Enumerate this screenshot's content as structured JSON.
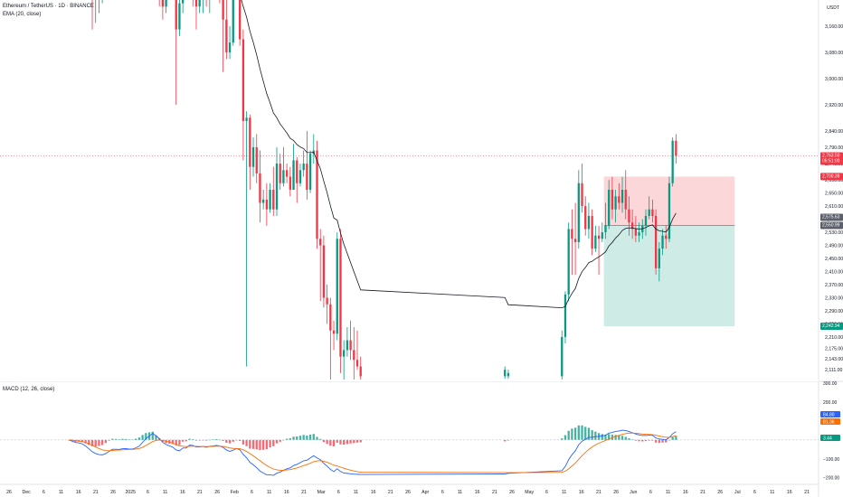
{
  "header": {
    "symbol_line": "Ethereum / TetherUS · 1D · BINANCE",
    "ema_label": "EMA (20, close)",
    "macd_label": "MACD (12, 26, close)",
    "currency": "USDT"
  },
  "price_axis": {
    "ticks": [
      "3,160.00",
      "3,080.00",
      "3,000.00",
      "2,920.00",
      "2,840.00",
      "2,790.00",
      "2,740.00",
      "2,690.00",
      "2,650.00",
      "2,610.00",
      "2,570.00",
      "2,530.00",
      "2,490.00",
      "2,450.00",
      "2,410.00",
      "2,370.00",
      "2,330.00",
      "2,290.00",
      "2,250.00",
      "2,210.00",
      "2,175.00",
      "2,143.00",
      "2,111.00"
    ],
    "badges": [
      {
        "name": "last-price-badge",
        "lines": [
          "2,763.50",
          "06:51:00"
        ],
        "color": "#f23645"
      },
      {
        "name": "position-top-badge",
        "lines": [
          "2,700.39"
        ],
        "color": "#f23645"
      },
      {
        "name": "ema-badge",
        "lines": [
          "2,575.63"
        ],
        "color": "#5d606b"
      },
      {
        "name": "entry-badge",
        "lines": [
          "2,550.99"
        ],
        "color": "#5d606b"
      },
      {
        "name": "target-badge",
        "lines": [
          "2,242.94"
        ],
        "color": "#089981"
      }
    ]
  },
  "macd_axis": {
    "ticks": [
      "300.00",
      "200.00",
      "100.00",
      "−100.00",
      "−200.00"
    ],
    "badges": [
      {
        "name": "macd-line-badge",
        "text": "84.80",
        "color": "#2962ff"
      },
      {
        "name": "signal-line-badge",
        "text": "81.36",
        "color": "#ff6d00"
      },
      {
        "name": "histogram-badge",
        "text": "3.44",
        "color": "#089981"
      }
    ]
  },
  "time_axis": {
    "labels": [
      "26",
      "Dec",
      "6",
      "11",
      "16",
      "21",
      "26",
      "2025",
      "6",
      "11",
      "16",
      "21",
      "26",
      "Feb",
      "6",
      "11",
      "16",
      "21",
      "Mar",
      "6",
      "11",
      "16",
      "21",
      "26",
      "Apr",
      "6",
      "11",
      "16",
      "21",
      "26",
      "May",
      "6",
      "11",
      "16",
      "21",
      "26",
      "Jun",
      "6",
      "11",
      "16",
      "21",
      "26",
      "Jul",
      "6",
      "11",
      "16",
      "21"
    ]
  },
  "chart_data": {
    "type": "candlestick",
    "title": "Ethereum / TetherUS · 1D · BINANCE",
    "x_range": [
      "2024-11-22",
      "2025-07-24"
    ],
    "y_range_visible": [
      2080,
      3240
    ],
    "position_tool": {
      "entry": 2550.99,
      "stop": 2700.39,
      "target": 2242.94,
      "side": "short"
    },
    "last_price": 2763.5,
    "ema_last": 2575.63,
    "candles": [
      {
        "date": "2024-12-12",
        "o": 3600,
        "h": 3700,
        "l": 3400,
        "c": 3580
      },
      {
        "date": "2024-12-13",
        "o": 3580,
        "h": 3650,
        "l": 3450,
        "c": 3500
      },
      {
        "date": "2024-12-14",
        "o": 3500,
        "h": 3560,
        "l": 3430,
        "c": 3470
      },
      {
        "date": "2024-12-15",
        "o": 3470,
        "h": 3550,
        "l": 3440,
        "c": 3520
      },
      {
        "date": "2024-12-16",
        "o": 3520,
        "h": 3600,
        "l": 3430,
        "c": 3460
      },
      {
        "date": "2024-12-17",
        "o": 3460,
        "h": 3520,
        "l": 3350,
        "c": 3380
      },
      {
        "date": "2024-12-18",
        "o": 3380,
        "h": 3420,
        "l": 3250,
        "c": 3290
      },
      {
        "date": "2024-12-19",
        "o": 3290,
        "h": 3360,
        "l": 3150,
        "c": 3240
      },
      {
        "date": "2024-12-20",
        "o": 3240,
        "h": 3290,
        "l": 3170,
        "c": 3260
      },
      {
        "date": "2024-12-21",
        "o": 3260,
        "h": 3320,
        "l": 3200,
        "c": 3280
      },
      {
        "date": "2024-12-22",
        "o": 3280,
        "h": 3350,
        "l": 3230,
        "c": 3300
      },
      {
        "date": "2024-12-23",
        "o": 3300,
        "h": 3420,
        "l": 3280,
        "c": 3390
      },
      {
        "date": "2024-12-24",
        "o": 3390,
        "h": 3480,
        "l": 3360,
        "c": 3450
      },
      {
        "date": "2024-12-25",
        "o": 3450,
        "h": 3520,
        "l": 3420,
        "c": 3480
      },
      {
        "date": "2024-12-26",
        "o": 3480,
        "h": 3500,
        "l": 3330,
        "c": 3360
      },
      {
        "date": "2024-12-27",
        "o": 3360,
        "h": 3400,
        "l": 3310,
        "c": 3340
      },
      {
        "date": "2024-12-28",
        "o": 3340,
        "h": 3410,
        "l": 3320,
        "c": 3390
      },
      {
        "date": "2024-12-29",
        "o": 3390,
        "h": 3420,
        "l": 3330,
        "c": 3350
      },
      {
        "date": "2024-12-30",
        "o": 3350,
        "h": 3420,
        "l": 3290,
        "c": 3310
      },
      {
        "date": "2024-12-31",
        "o": 3310,
        "h": 3380,
        "l": 3290,
        "c": 3330
      },
      {
        "date": "2025-01-01",
        "o": 3330,
        "h": 3420,
        "l": 3310,
        "c": 3400
      },
      {
        "date": "2025-01-02",
        "o": 3400,
        "h": 3500,
        "l": 3380,
        "c": 3450
      },
      {
        "date": "2025-01-03",
        "o": 3450,
        "h": 3620,
        "l": 3430,
        "c": 3600
      },
      {
        "date": "2025-01-04",
        "o": 3600,
        "h": 3680,
        "l": 3570,
        "c": 3650
      },
      {
        "date": "2025-01-05",
        "o": 3650,
        "h": 3720,
        "l": 3600,
        "c": 3630
      },
      {
        "date": "2025-01-06",
        "o": 3630,
        "h": 3700,
        "l": 3580,
        "c": 3680
      },
      {
        "date": "2025-01-07",
        "o": 3680,
        "h": 3700,
        "l": 3350,
        "c": 3380
      },
      {
        "date": "2025-01-08",
        "o": 3380,
        "h": 3420,
        "l": 3220,
        "c": 3330
      },
      {
        "date": "2025-01-09",
        "o": 3330,
        "h": 3360,
        "l": 3180,
        "c": 3220
      },
      {
        "date": "2025-01-10",
        "o": 3220,
        "h": 3330,
        "l": 3200,
        "c": 3270
      },
      {
        "date": "2025-01-11",
        "o": 3270,
        "h": 3320,
        "l": 3240,
        "c": 3290
      },
      {
        "date": "2025-01-12",
        "o": 3290,
        "h": 3340,
        "l": 3250,
        "c": 3270
      },
      {
        "date": "2025-01-13",
        "o": 3270,
        "h": 3350,
        "l": 2920,
        "c": 3150
      },
      {
        "date": "2025-01-14",
        "o": 3150,
        "h": 3250,
        "l": 3130,
        "c": 3230
      },
      {
        "date": "2025-01-15",
        "o": 3230,
        "h": 3470,
        "l": 3200,
        "c": 3450
      },
      {
        "date": "2025-01-16",
        "o": 3450,
        "h": 3470,
        "l": 3250,
        "c": 3300
      },
      {
        "date": "2025-01-17",
        "o": 3300,
        "h": 3520,
        "l": 3290,
        "c": 3480
      },
      {
        "date": "2025-01-18",
        "o": 3480,
        "h": 3500,
        "l": 3220,
        "c": 3310
      },
      {
        "date": "2025-01-19",
        "o": 3310,
        "h": 3450,
        "l": 3150,
        "c": 3220
      },
      {
        "date": "2025-01-20",
        "o": 3220,
        "h": 3460,
        "l": 3200,
        "c": 3300
      },
      {
        "date": "2025-01-21",
        "o": 3300,
        "h": 3350,
        "l": 3200,
        "c": 3320
      },
      {
        "date": "2025-01-22",
        "o": 3320,
        "h": 3350,
        "l": 3220,
        "c": 3240
      },
      {
        "date": "2025-01-23",
        "o": 3240,
        "h": 3350,
        "l": 3200,
        "c": 3330
      },
      {
        "date": "2025-01-24",
        "o": 3330,
        "h": 3420,
        "l": 3280,
        "c": 3310
      },
      {
        "date": "2025-01-25",
        "o": 3310,
        "h": 3350,
        "l": 3280,
        "c": 3320
      },
      {
        "date": "2025-01-26",
        "o": 3320,
        "h": 3370,
        "l": 3230,
        "c": 3250
      },
      {
        "date": "2025-01-27",
        "o": 3250,
        "h": 3260,
        "l": 3020,
        "c": 3180
      },
      {
        "date": "2025-01-28",
        "o": 3180,
        "h": 3240,
        "l": 3060,
        "c": 3080
      },
      {
        "date": "2025-01-29",
        "o": 3080,
        "h": 3160,
        "l": 3060,
        "c": 3110
      },
      {
        "date": "2025-01-30",
        "o": 3110,
        "h": 3290,
        "l": 3100,
        "c": 3250
      },
      {
        "date": "2025-01-31",
        "o": 3250,
        "h": 3430,
        "l": 3240,
        "c": 3300
      },
      {
        "date": "2025-02-01",
        "o": 3300,
        "h": 3310,
        "l": 3100,
        "c": 3120
      },
      {
        "date": "2025-02-02",
        "o": 3120,
        "h": 3150,
        "l": 2750,
        "c": 2870
      },
      {
        "date": "2025-02-03",
        "o": 2870,
        "h": 2900,
        "l": 2120,
        "c": 2880
      },
      {
        "date": "2025-02-04",
        "o": 2880,
        "h": 2890,
        "l": 2660,
        "c": 2730
      },
      {
        "date": "2025-02-05",
        "o": 2730,
        "h": 2820,
        "l": 2700,
        "c": 2790
      },
      {
        "date": "2025-02-06",
        "o": 2790,
        "h": 2830,
        "l": 2680,
        "c": 2710
      },
      {
        "date": "2025-02-07",
        "o": 2710,
        "h": 2780,
        "l": 2560,
        "c": 2620
      },
      {
        "date": "2025-02-08",
        "o": 2620,
        "h": 2660,
        "l": 2600,
        "c": 2630
      },
      {
        "date": "2025-02-09",
        "o": 2630,
        "h": 2680,
        "l": 2550,
        "c": 2600
      },
      {
        "date": "2025-02-10",
        "o": 2600,
        "h": 2680,
        "l": 2590,
        "c": 2660
      },
      {
        "date": "2025-02-11",
        "o": 2660,
        "h": 2730,
        "l": 2580,
        "c": 2600
      },
      {
        "date": "2025-02-12",
        "o": 2600,
        "h": 2790,
        "l": 2580,
        "c": 2740
      },
      {
        "date": "2025-02-13",
        "o": 2740,
        "h": 2770,
        "l": 2660,
        "c": 2680
      },
      {
        "date": "2025-02-14",
        "o": 2680,
        "h": 2790,
        "l": 2670,
        "c": 2720
      },
      {
        "date": "2025-02-15",
        "o": 2720,
        "h": 2740,
        "l": 2680,
        "c": 2700
      },
      {
        "date": "2025-02-16",
        "o": 2700,
        "h": 2730,
        "l": 2640,
        "c": 2660
      },
      {
        "date": "2025-02-17",
        "o": 2660,
        "h": 2800,
        "l": 2660,
        "c": 2750
      },
      {
        "date": "2025-02-18",
        "o": 2750,
        "h": 2760,
        "l": 2620,
        "c": 2680
      },
      {
        "date": "2025-02-19",
        "o": 2680,
        "h": 2740,
        "l": 2670,
        "c": 2720
      },
      {
        "date": "2025-02-20",
        "o": 2720,
        "h": 2780,
        "l": 2700,
        "c": 2740
      },
      {
        "date": "2025-02-21",
        "o": 2740,
        "h": 2840,
        "l": 2630,
        "c": 2660
      },
      {
        "date": "2025-02-22",
        "o": 2660,
        "h": 2780,
        "l": 2650,
        "c": 2770
      },
      {
        "date": "2025-02-23",
        "o": 2770,
        "h": 2830,
        "l": 2740,
        "c": 2780
      },
      {
        "date": "2025-02-24",
        "o": 2780,
        "h": 2810,
        "l": 2480,
        "c": 2510
      },
      {
        "date": "2025-02-25",
        "o": 2510,
        "h": 2540,
        "l": 2320,
        "c": 2490
      },
      {
        "date": "2025-02-26",
        "o": 2490,
        "h": 2520,
        "l": 2300,
        "c": 2330
      },
      {
        "date": "2025-02-27",
        "o": 2330,
        "h": 2370,
        "l": 2250,
        "c": 2310
      },
      {
        "date": "2025-02-28",
        "o": 2310,
        "h": 2330,
        "l": 2080,
        "c": 2230
      },
      {
        "date": "2025-03-01",
        "o": 2230,
        "h": 2260,
        "l": 2170,
        "c": 2220
      },
      {
        "date": "2025-03-02",
        "o": 2220,
        "h": 2530,
        "l": 2200,
        "c": 2510
      },
      {
        "date": "2025-03-03",
        "o": 2510,
        "h": 2540,
        "l": 2100,
        "c": 2150
      },
      {
        "date": "2025-03-04",
        "o": 2150,
        "h": 2200,
        "l": 2080,
        "c": 2170
      },
      {
        "date": "2025-03-05",
        "o": 2170,
        "h": 2240,
        "l": 2150,
        "c": 2200
      },
      {
        "date": "2025-03-06",
        "o": 2200,
        "h": 2260,
        "l": 2140,
        "c": 2170
      },
      {
        "date": "2025-03-07",
        "o": 2170,
        "h": 2240,
        "l": 2080,
        "c": 2140
      },
      {
        "date": "2025-03-08",
        "o": 2140,
        "h": 2230,
        "l": 2110,
        "c": 2120
      },
      {
        "date": "2025-03-09",
        "o": 2120,
        "h": 2150,
        "l": 2080,
        "c": 2090
      },
      {
        "date": "2025-04-21",
        "o": 2090,
        "h": 2120,
        "l": 2082,
        "c": 2110
      },
      {
        "date": "2025-04-22",
        "o": 2090,
        "h": 2110,
        "l": 2082,
        "c": 2100
      },
      {
        "date": "2025-05-08",
        "o": 2090,
        "h": 2230,
        "l": 2080,
        "c": 2210
      },
      {
        "date": "2025-05-09",
        "o": 2210,
        "h": 2350,
        "l": 2190,
        "c": 2340
      },
      {
        "date": "2025-05-10",
        "o": 2340,
        "h": 2560,
        "l": 2320,
        "c": 2540
      },
      {
        "date": "2025-05-11",
        "o": 2540,
        "h": 2600,
        "l": 2400,
        "c": 2510
      },
      {
        "date": "2025-05-12",
        "o": 2510,
        "h": 2620,
        "l": 2400,
        "c": 2500
      },
      {
        "date": "2025-05-13",
        "o": 2500,
        "h": 2720,
        "l": 2480,
        "c": 2680
      },
      {
        "date": "2025-05-14",
        "o": 2680,
        "h": 2740,
        "l": 2590,
        "c": 2610
      },
      {
        "date": "2025-05-15",
        "o": 2610,
        "h": 2640,
        "l": 2520,
        "c": 2540
      },
      {
        "date": "2025-05-16",
        "o": 2540,
        "h": 2620,
        "l": 2510,
        "c": 2580
      },
      {
        "date": "2025-05-17",
        "o": 2580,
        "h": 2600,
        "l": 2460,
        "c": 2480
      },
      {
        "date": "2025-05-18",
        "o": 2480,
        "h": 2550,
        "l": 2470,
        "c": 2520
      },
      {
        "date": "2025-05-19",
        "o": 2520,
        "h": 2550,
        "l": 2400,
        "c": 2510
      },
      {
        "date": "2025-05-20",
        "o": 2510,
        "h": 2560,
        "l": 2500,
        "c": 2530
      },
      {
        "date": "2025-05-21",
        "o": 2530,
        "h": 2620,
        "l": 2510,
        "c": 2550
      },
      {
        "date": "2025-05-22",
        "o": 2550,
        "h": 2690,
        "l": 2540,
        "c": 2660
      },
      {
        "date": "2025-05-23",
        "o": 2660,
        "h": 2700,
        "l": 2570,
        "c": 2600
      },
      {
        "date": "2025-05-24",
        "o": 2600,
        "h": 2660,
        "l": 2560,
        "c": 2640
      },
      {
        "date": "2025-05-25",
        "o": 2640,
        "h": 2680,
        "l": 2600,
        "c": 2620
      },
      {
        "date": "2025-05-26",
        "o": 2620,
        "h": 2700,
        "l": 2590,
        "c": 2660
      },
      {
        "date": "2025-05-27",
        "o": 2660,
        "h": 2720,
        "l": 2570,
        "c": 2600
      },
      {
        "date": "2025-05-28",
        "o": 2600,
        "h": 2640,
        "l": 2520,
        "c": 2560
      },
      {
        "date": "2025-05-29",
        "o": 2560,
        "h": 2600,
        "l": 2510,
        "c": 2540
      },
      {
        "date": "2025-05-30",
        "o": 2540,
        "h": 2580,
        "l": 2500,
        "c": 2520
      },
      {
        "date": "2025-05-31",
        "o": 2520,
        "h": 2560,
        "l": 2500,
        "c": 2530
      },
      {
        "date": "2025-06-01",
        "o": 2530,
        "h": 2570,
        "l": 2510,
        "c": 2550
      },
      {
        "date": "2025-06-02",
        "o": 2550,
        "h": 2600,
        "l": 2520,
        "c": 2580
      },
      {
        "date": "2025-06-03",
        "o": 2580,
        "h": 2640,
        "l": 2570,
        "c": 2600
      },
      {
        "date": "2025-06-04",
        "o": 2600,
        "h": 2630,
        "l": 2560,
        "c": 2580
      },
      {
        "date": "2025-06-05",
        "o": 2580,
        "h": 2600,
        "l": 2400,
        "c": 2420
      },
      {
        "date": "2025-06-06",
        "o": 2420,
        "h": 2500,
        "l": 2380,
        "c": 2480
      },
      {
        "date": "2025-06-07",
        "o": 2480,
        "h": 2540,
        "l": 2460,
        "c": 2520
      },
      {
        "date": "2025-06-08",
        "o": 2520,
        "h": 2550,
        "l": 2480,
        "c": 2510
      },
      {
        "date": "2025-06-09",
        "o": 2510,
        "h": 2700,
        "l": 2500,
        "c": 2680
      },
      {
        "date": "2025-06-10",
        "o": 2680,
        "h": 2820,
        "l": 2670,
        "c": 2810
      },
      {
        "date": "2025-06-11",
        "o": 2810,
        "h": 2830,
        "l": 2740,
        "c": 2763.5
      }
    ]
  }
}
